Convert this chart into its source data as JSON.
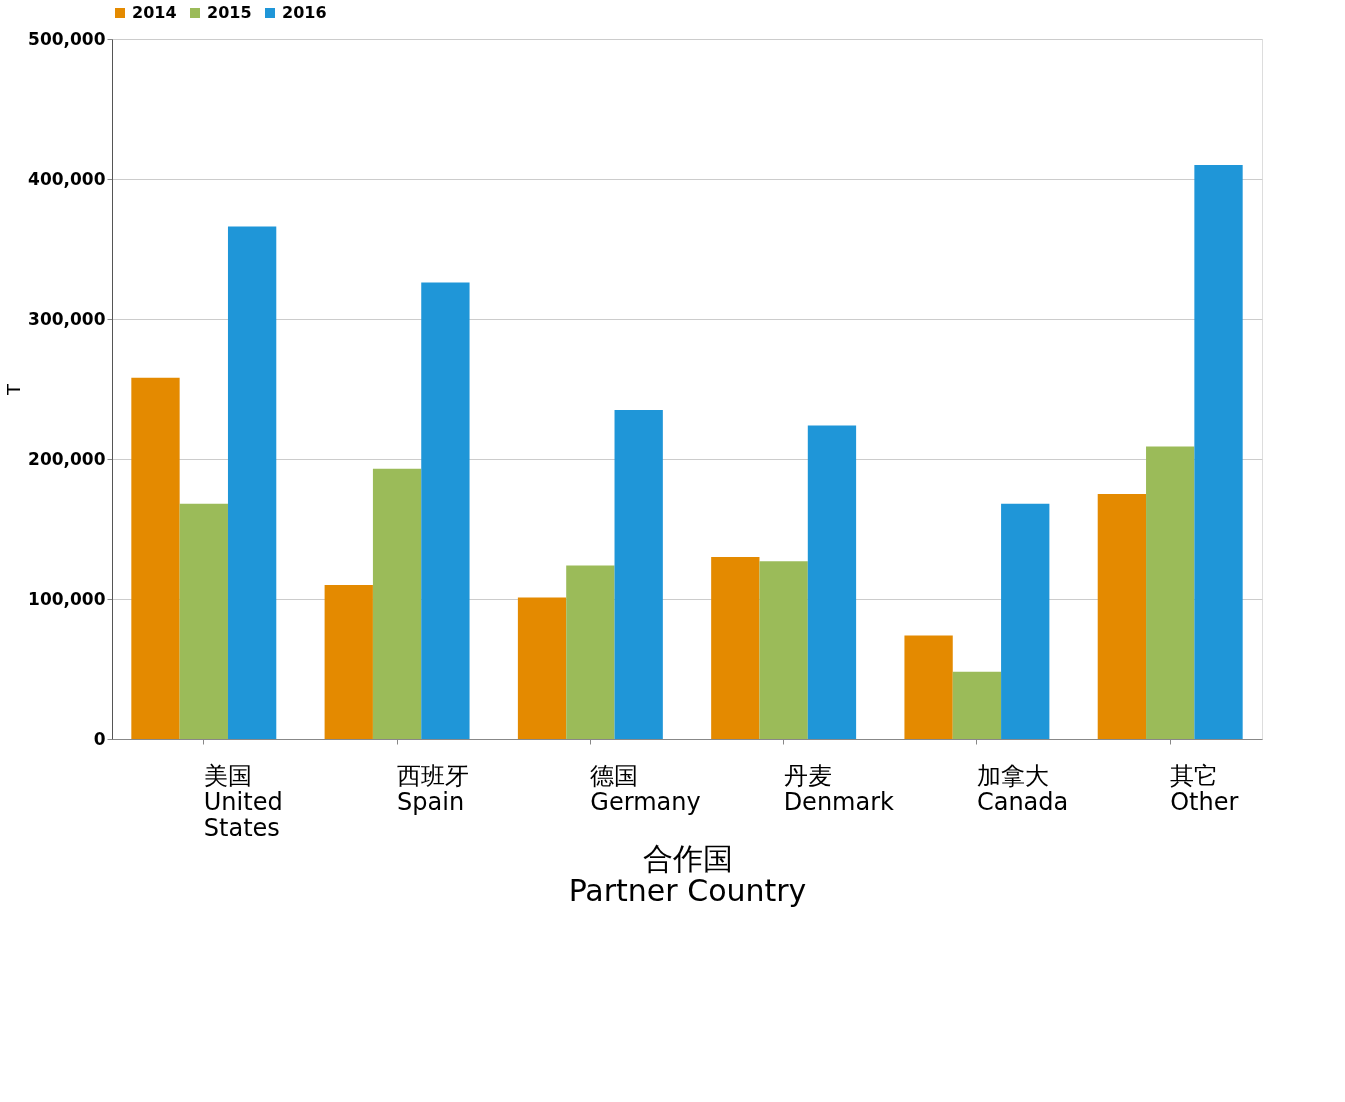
{
  "chart_data": {
    "type": "bar",
    "xlabel": "合作国\nPartner Country",
    "ylabel": "T",
    "categories": [
      "美国\nUnited\nStates",
      "西班牙\nSpain",
      "德国\nGermany",
      "丹麦\nDenmark",
      "加拿大\nCanada",
      "其它\nOther"
    ],
    "series": [
      {
        "name": "2014",
        "color": "#e48a00",
        "values": [
          258000,
          110000,
          101000,
          130000,
          74000,
          175000
        ]
      },
      {
        "name": "2015",
        "color": "#9bbb59",
        "values": [
          168000,
          193000,
          124000,
          127000,
          48000,
          209000
        ]
      },
      {
        "name": "2016",
        "color": "#1f96d8",
        "values": [
          366000,
          326000,
          235000,
          224000,
          168000,
          410000
        ]
      }
    ],
    "ylim": [
      0,
      500000
    ],
    "yticks": [
      0,
      {
        "value": 100000,
        "label": "100,000"
      },
      {
        "value": 200000,
        "label": "200,000"
      },
      {
        "value": 300000,
        "label": "300,000"
      },
      {
        "value": 400000,
        "label": "400,000"
      },
      {
        "value": 500000,
        "label": "500,000"
      }
    ],
    "grid": "y",
    "legend": "top"
  }
}
